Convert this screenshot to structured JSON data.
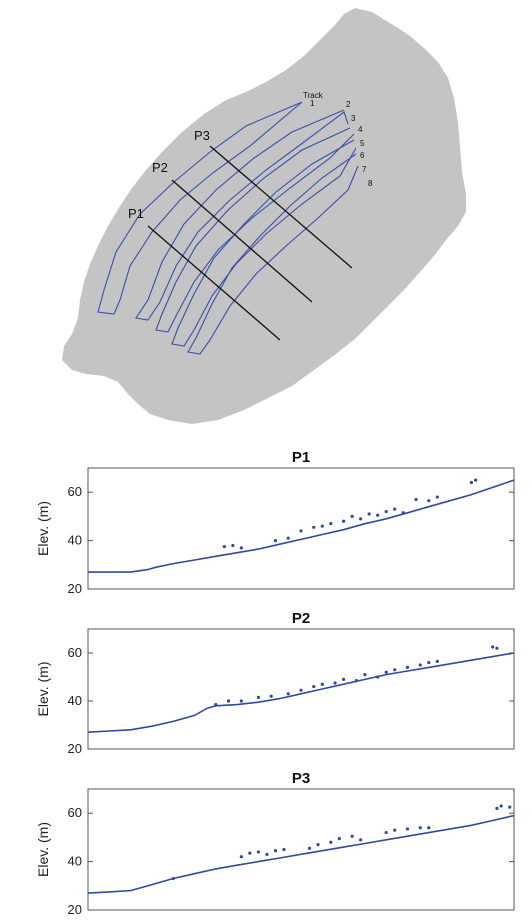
{
  "colors": {
    "background": "#ffffff",
    "map_fill": "#c4c4c4",
    "track_line": "#3a4fa8",
    "profile_line": "#2f4aa0",
    "section_line": "#111111",
    "axis": "#555555"
  },
  "map": {
    "track_header": "Track",
    "tracks": [
      "1",
      "2",
      "3",
      "4",
      "5",
      "6",
      "7",
      "8"
    ],
    "profiles": [
      "P1",
      "P2",
      "P3"
    ]
  },
  "chart_data": [
    {
      "type": "scatter",
      "title": "P1",
      "xlabel": "",
      "ylabel": "Elev. (m)",
      "ylim": [
        20,
        70
      ],
      "xlim": [
        0,
        100
      ],
      "yticks": [
        "20",
        "40",
        "60"
      ],
      "grid": false,
      "series": [
        {
          "values_x": [
            0,
            5,
            10,
            14,
            16,
            20,
            25,
            30,
            35,
            40,
            45,
            50,
            55,
            60,
            65,
            70,
            75,
            80,
            85,
            90,
            95,
            100
          ],
          "values_y": [
            27,
            27,
            27,
            28,
            29,
            30.5,
            32,
            33.5,
            35,
            36.5,
            38.5,
            40.5,
            42.5,
            44.5,
            47,
            49,
            51.5,
            54,
            56.5,
            59,
            62,
            65
          ]
        },
        {
          "values_x": [
            32,
            34,
            36,
            44,
            47,
            50,
            53,
            55,
            57,
            60,
            62,
            64,
            66,
            68,
            70,
            72,
            74,
            77,
            80,
            82,
            90,
            91
          ],
          "values_y": [
            37.5,
            38,
            37,
            40,
            41,
            44,
            45.5,
            46,
            47,
            48,
            50,
            49,
            51,
            50.5,
            52,
            53,
            51.5,
            57,
            56.5,
            58,
            64,
            65
          ]
        }
      ]
    },
    {
      "type": "scatter",
      "title": "P2",
      "xlabel": "",
      "ylabel": "Elev. (m)",
      "ylim": [
        20,
        70
      ],
      "xlim": [
        0,
        100
      ],
      "yticks": [
        "20",
        "40",
        "60"
      ],
      "grid": false,
      "series": [
        {
          "values_x": [
            0,
            5,
            10,
            15,
            20,
            25,
            28,
            30,
            35,
            40,
            45,
            50,
            55,
            60,
            65,
            70,
            75,
            80,
            85,
            90,
            95,
            100
          ],
          "values_y": [
            27,
            27.5,
            28,
            29.5,
            31.5,
            34,
            37,
            38,
            38.5,
            39.5,
            41,
            43,
            45,
            47,
            49,
            51,
            52.5,
            54,
            55.5,
            57,
            58.5,
            60
          ]
        },
        {
          "values_x": [
            30,
            33,
            36,
            40,
            43,
            47,
            50,
            53,
            55,
            58,
            60,
            63,
            65,
            68,
            70,
            72,
            75,
            78,
            80,
            82,
            95,
            96
          ],
          "values_y": [
            38.5,
            40,
            40,
            41.5,
            42,
            43,
            44.5,
            46,
            47,
            47.5,
            49,
            48.5,
            51,
            50,
            52,
            53,
            54,
            55,
            56,
            56.5,
            62.5,
            62
          ]
        }
      ]
    },
    {
      "type": "scatter",
      "title": "P3",
      "xlabel": "",
      "ylabel": "Elev. (m)",
      "ylim": [
        20,
        70
      ],
      "xlim": [
        0,
        100
      ],
      "yticks": [
        "20",
        "40",
        "60"
      ],
      "grid": false,
      "series": [
        {
          "values_x": [
            0,
            5,
            10,
            15,
            20,
            25,
            30,
            35,
            40,
            45,
            50,
            55,
            60,
            65,
            70,
            75,
            80,
            85,
            90,
            95,
            100
          ],
          "values_y": [
            27,
            27.5,
            28,
            30.5,
            33,
            35,
            37,
            38.5,
            40,
            41.5,
            43,
            44.5,
            46,
            47.5,
            49,
            50.5,
            52,
            53.5,
            55,
            57,
            59
          ]
        },
        {
          "values_x": [
            20,
            36,
            38,
            40,
            42,
            44,
            46,
            52,
            54,
            57,
            59,
            62,
            64,
            70,
            72,
            75,
            78,
            80,
            96,
            97,
            99
          ],
          "values_y": [
            33,
            42,
            43.5,
            44,
            43,
            44.5,
            45,
            45.5,
            47,
            48,
            49.5,
            50.5,
            49,
            52,
            53,
            53.5,
            54,
            54,
            62,
            63,
            62.5
          ]
        }
      ]
    }
  ]
}
